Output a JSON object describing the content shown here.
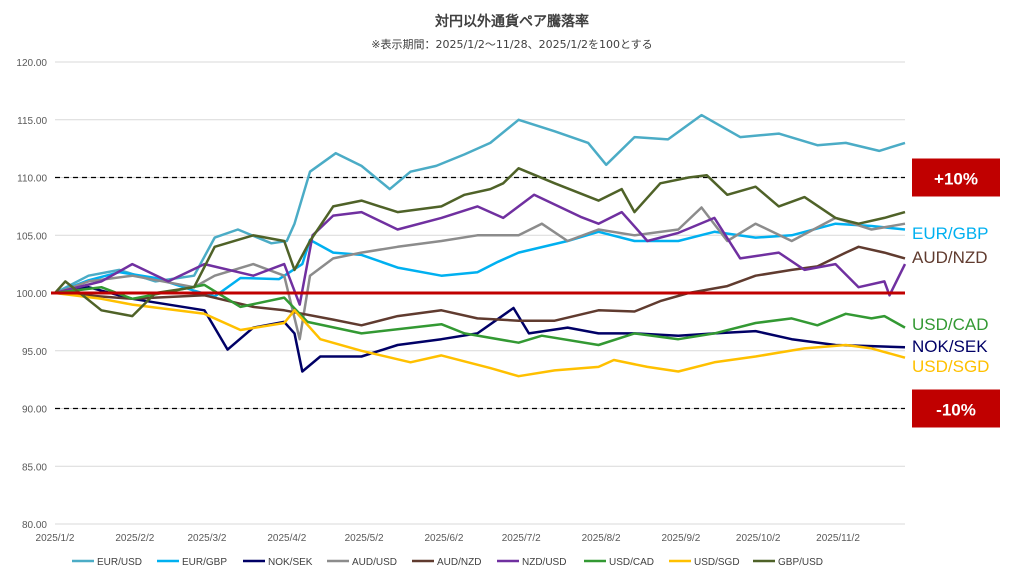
{
  "chart_data": {
    "type": "line",
    "title": "対円以外通貨ペア騰落率",
    "subtitle": "※表示期間：2025/1/2〜11/28、2025/1/2を100とする",
    "xlabel": "",
    "ylabel": "",
    "ylim": [
      80,
      120
    ],
    "yticks": [
      "80.00",
      "85.00",
      "90.00",
      "95.00",
      "100.00",
      "105.00",
      "110.00",
      "115.00",
      "120.00"
    ],
    "xticks": [
      "2025/1/2",
      "2025/2/2",
      "2025/3/2",
      "2025/4/2",
      "2025/5/2",
      "2025/6/2",
      "2025/7/2",
      "2025/8/2",
      "2025/9/2",
      "2025/10/2",
      "2025/11/2"
    ],
    "xtick_dates": [
      "01-02",
      "02-02",
      "03-02",
      "04-02",
      "05-02",
      "06-02",
      "07-02",
      "08-02",
      "09-02",
      "10-02",
      "11-02"
    ],
    "xrange": [
      "01-02",
      "11-28"
    ],
    "grid": true,
    "legend": "bottom",
    "reference_lines": [
      {
        "value": 100,
        "style": "solid",
        "color": "#c00000"
      },
      {
        "value": 110,
        "style": "dashed",
        "color": "#000000",
        "label": "+10%"
      },
      {
        "value": 90,
        "style": "dashed",
        "color": "#000000",
        "label": "-10%"
      }
    ],
    "series": [
      {
        "name": "EUR/USD",
        "color": "#4bacc6",
        "points": [
          [
            "01-02",
            100
          ],
          [
            "01-15",
            101.5
          ],
          [
            "01-27",
            102
          ],
          [
            "02-10",
            101
          ],
          [
            "02-25",
            101.5
          ],
          [
            "03-05",
            104.8
          ],
          [
            "03-14",
            105.5
          ],
          [
            "03-27",
            104.3
          ],
          [
            "04-02",
            104.5
          ],
          [
            "04-05",
            106
          ],
          [
            "04-11",
            110.5
          ],
          [
            "04-21",
            112.1
          ],
          [
            "05-01",
            111
          ],
          [
            "05-12",
            109
          ],
          [
            "05-20",
            110.5
          ],
          [
            "05-30",
            111
          ],
          [
            "06-10",
            112
          ],
          [
            "06-20",
            113
          ],
          [
            "07-01",
            115
          ],
          [
            "07-15",
            114
          ],
          [
            "07-28",
            113
          ],
          [
            "08-04",
            111.1
          ],
          [
            "08-15",
            113.5
          ],
          [
            "08-28",
            113.3
          ],
          [
            "09-10",
            115.4
          ],
          [
            "09-25",
            113.5
          ],
          [
            "10-10",
            113.8
          ],
          [
            "10-25",
            112.8
          ],
          [
            "11-05",
            113
          ],
          [
            "11-18",
            112.3
          ],
          [
            "11-28",
            113
          ]
        ]
      },
      {
        "name": "EUR/GBP",
        "color": "#00b0f0",
        "points": [
          [
            "01-02",
            100
          ],
          [
            "01-15",
            101.1
          ],
          [
            "01-27",
            101.8
          ],
          [
            "02-10",
            101.3
          ],
          [
            "02-25",
            100.2
          ],
          [
            "03-05",
            99.7
          ],
          [
            "03-15",
            101.3
          ],
          [
            "03-30",
            101.2
          ],
          [
            "04-08",
            102.5
          ],
          [
            "04-11",
            104.6
          ],
          [
            "04-20",
            103.5
          ],
          [
            "05-01",
            103.3
          ],
          [
            "05-15",
            102.2
          ],
          [
            "06-01",
            101.5
          ],
          [
            "06-15",
            101.8
          ],
          [
            "06-23",
            102.7
          ],
          [
            "07-01",
            103.5
          ],
          [
            "07-20",
            104.5
          ],
          [
            "08-01",
            105.3
          ],
          [
            "08-15",
            104.5
          ],
          [
            "09-01",
            104.5
          ],
          [
            "09-15",
            105.3
          ],
          [
            "10-01",
            104.8
          ],
          [
            "10-15",
            105
          ],
          [
            "11-01",
            106
          ],
          [
            "11-15",
            105.8
          ],
          [
            "11-28",
            105.5
          ]
        ]
      },
      {
        "name": "NOK/SEK",
        "color": "#000066",
        "points": [
          [
            "01-02",
            100
          ],
          [
            "01-15",
            100.5
          ],
          [
            "02-01",
            99.5
          ],
          [
            "03-01",
            98.5
          ],
          [
            "03-10",
            95.1
          ],
          [
            "03-20",
            97
          ],
          [
            "04-01",
            97.5
          ],
          [
            "04-05",
            96.5
          ],
          [
            "04-08",
            93.2
          ],
          [
            "04-15",
            94.5
          ],
          [
            "05-01",
            94.5
          ],
          [
            "05-15",
            95.5
          ],
          [
            "06-01",
            96
          ],
          [
            "06-15",
            96.5
          ],
          [
            "06-29",
            98.7
          ],
          [
            "07-05",
            96.5
          ],
          [
            "07-20",
            97
          ],
          [
            "08-01",
            96.5
          ],
          [
            "08-15",
            96.5
          ],
          [
            "09-01",
            96.3
          ],
          [
            "09-15",
            96.5
          ],
          [
            "10-01",
            96.7
          ],
          [
            "10-15",
            96
          ],
          [
            "11-01",
            95.5
          ],
          [
            "11-15",
            95.4
          ],
          [
            "11-28",
            95.3
          ]
        ]
      },
      {
        "name": "AUD/USD",
        "color": "#8c8c8c",
        "points": [
          [
            "01-02",
            100
          ],
          [
            "01-15",
            101
          ],
          [
            "02-01",
            101.5
          ],
          [
            "02-25",
            100.5
          ],
          [
            "03-05",
            101.5
          ],
          [
            "03-20",
            102.5
          ],
          [
            "04-01",
            101.5
          ],
          [
            "04-07",
            96
          ],
          [
            "04-11",
            101.5
          ],
          [
            "04-20",
            103
          ],
          [
            "05-01",
            103.5
          ],
          [
            "05-15",
            104
          ],
          [
            "06-01",
            104.5
          ],
          [
            "06-15",
            105
          ],
          [
            "07-01",
            105
          ],
          [
            "07-10",
            106
          ],
          [
            "07-20",
            104.5
          ],
          [
            "08-01",
            105.5
          ],
          [
            "08-15",
            105
          ],
          [
            "09-01",
            105.5
          ],
          [
            "09-10",
            107.4
          ],
          [
            "09-20",
            104.5
          ],
          [
            "10-01",
            106
          ],
          [
            "10-15",
            104.5
          ],
          [
            "11-01",
            106.5
          ],
          [
            "11-15",
            105.5
          ],
          [
            "11-28",
            106
          ]
        ]
      },
      {
        "name": "AUD/NZD",
        "color": "#603b2f",
        "points": [
          [
            "01-02",
            100
          ],
          [
            "02-01",
            99.5
          ],
          [
            "03-01",
            99.8
          ],
          [
            "03-20",
            98.8
          ],
          [
            "04-01",
            98.5
          ],
          [
            "04-20",
            97.7
          ],
          [
            "05-01",
            97.2
          ],
          [
            "05-15",
            98
          ],
          [
            "06-01",
            98.5
          ],
          [
            "06-15",
            97.8
          ],
          [
            "07-01",
            97.6
          ],
          [
            "07-15",
            97.6
          ],
          [
            "08-01",
            98.5
          ],
          [
            "08-15",
            98.4
          ],
          [
            "08-25",
            99.3
          ],
          [
            "09-05",
            100
          ],
          [
            "09-20",
            100.6
          ],
          [
            "10-01",
            101.5
          ],
          [
            "10-15",
            102
          ],
          [
            "10-25",
            102.3
          ],
          [
            "11-05",
            103.5
          ],
          [
            "11-10",
            104
          ],
          [
            "11-20",
            103.5
          ],
          [
            "11-28",
            103
          ]
        ]
      },
      {
        "name": "NZD/USD",
        "color": "#7030a0",
        "points": [
          [
            "01-02",
            100
          ],
          [
            "01-20",
            101
          ],
          [
            "02-01",
            102.5
          ],
          [
            "02-15",
            101
          ],
          [
            "03-01",
            102.5
          ],
          [
            "03-20",
            101.5
          ],
          [
            "04-01",
            102.5
          ],
          [
            "04-07",
            99
          ],
          [
            "04-12",
            105
          ],
          [
            "04-20",
            106.7
          ],
          [
            "05-01",
            107
          ],
          [
            "05-15",
            105.5
          ],
          [
            "06-01",
            106.5
          ],
          [
            "06-15",
            107.5
          ],
          [
            "06-25",
            106.5
          ],
          [
            "07-07",
            108.5
          ],
          [
            "07-25",
            106.6
          ],
          [
            "08-01",
            106
          ],
          [
            "08-10",
            107
          ],
          [
            "08-20",
            104.5
          ],
          [
            "09-01",
            105.2
          ],
          [
            "09-15",
            106.5
          ],
          [
            "09-25",
            103
          ],
          [
            "10-10",
            103.5
          ],
          [
            "10-20",
            102
          ],
          [
            "11-01",
            102.5
          ],
          [
            "11-10",
            100.5
          ],
          [
            "11-20",
            101
          ],
          [
            "11-22",
            99.8
          ],
          [
            "11-28",
            102.5
          ]
        ]
      },
      {
        "name": "USD/CAD",
        "color": "#339933",
        "points": [
          [
            "01-02",
            100
          ],
          [
            "01-20",
            100.5
          ],
          [
            "02-01",
            99.5
          ],
          [
            "03-01",
            100.7
          ],
          [
            "03-15",
            98.8
          ],
          [
            "04-01",
            99.6
          ],
          [
            "04-10",
            97.5
          ],
          [
            "05-01",
            96.5
          ],
          [
            "06-01",
            97.3
          ],
          [
            "06-10",
            96.5
          ],
          [
            "07-01",
            95.7
          ],
          [
            "07-10",
            96.3
          ],
          [
            "08-01",
            95.5
          ],
          [
            "08-15",
            96.5
          ],
          [
            "09-01",
            96
          ],
          [
            "09-15",
            96.5
          ],
          [
            "10-01",
            97.4
          ],
          [
            "10-15",
            97.8
          ],
          [
            "10-25",
            97.2
          ],
          [
            "11-05",
            98.2
          ],
          [
            "11-15",
            97.8
          ],
          [
            "11-20",
            98
          ],
          [
            "11-28",
            97
          ]
        ]
      },
      {
        "name": "USD/SGD",
        "color": "#ffc000",
        "points": [
          [
            "01-02",
            100
          ],
          [
            "01-20",
            99.5
          ],
          [
            "02-01",
            99
          ],
          [
            "03-01",
            98.2
          ],
          [
            "03-15",
            96.8
          ],
          [
            "04-01",
            97.4
          ],
          [
            "04-05",
            98.5
          ],
          [
            "04-15",
            96
          ],
          [
            "05-01",
            95
          ],
          [
            "05-20",
            94
          ],
          [
            "06-01",
            94.6
          ],
          [
            "06-20",
            93.5
          ],
          [
            "07-01",
            92.8
          ],
          [
            "07-15",
            93.3
          ],
          [
            "08-01",
            93.6
          ],
          [
            "08-07",
            94.2
          ],
          [
            "08-20",
            93.6
          ],
          [
            "09-01",
            93.2
          ],
          [
            "09-15",
            94
          ],
          [
            "10-01",
            94.5
          ],
          [
            "10-20",
            95.2
          ],
          [
            "11-05",
            95.5
          ],
          [
            "11-15",
            95.2
          ],
          [
            "11-28",
            94.4
          ]
        ]
      },
      {
        "name": "GBP/USD",
        "color": "#4f6228",
        "points": [
          [
            "01-02",
            100
          ],
          [
            "01-06",
            101
          ],
          [
            "01-20",
            98.5
          ],
          [
            "02-01",
            98
          ],
          [
            "02-10",
            100
          ],
          [
            "02-25",
            100.5
          ],
          [
            "03-05",
            104
          ],
          [
            "03-20",
            105
          ],
          [
            "04-01",
            104.5
          ],
          [
            "04-05",
            102
          ],
          [
            "04-11",
            104.5
          ],
          [
            "04-20",
            107.5
          ],
          [
            "05-01",
            108
          ],
          [
            "05-15",
            107
          ],
          [
            "06-01",
            107.5
          ],
          [
            "06-10",
            108.5
          ],
          [
            "06-20",
            109
          ],
          [
            "06-25",
            109.5
          ],
          [
            "07-01",
            110.8
          ],
          [
            "07-15",
            109.5
          ],
          [
            "08-01",
            108
          ],
          [
            "08-10",
            109
          ],
          [
            "08-15",
            107
          ],
          [
            "08-25",
            109.5
          ],
          [
            "09-05",
            110
          ],
          [
            "09-12",
            110.2
          ],
          [
            "09-20",
            108.5
          ],
          [
            "10-01",
            109.2
          ],
          [
            "10-10",
            107.5
          ],
          [
            "10-20",
            108.3
          ],
          [
            "11-01",
            106.5
          ],
          [
            "11-10",
            106
          ],
          [
            "11-20",
            106.5
          ],
          [
            "11-28",
            107
          ]
        ]
      }
    ],
    "right_labels": [
      {
        "name": "EUR/GBP",
        "color": "#00b0f0"
      },
      {
        "name": "AUD/NZD",
        "color": "#603b2f"
      },
      {
        "name": "USD/CAD",
        "color": "#339933"
      },
      {
        "name": "NOK/SEK",
        "color": "#000066"
      },
      {
        "name": "USD/SGD",
        "color": "#ffc000"
      }
    ]
  }
}
